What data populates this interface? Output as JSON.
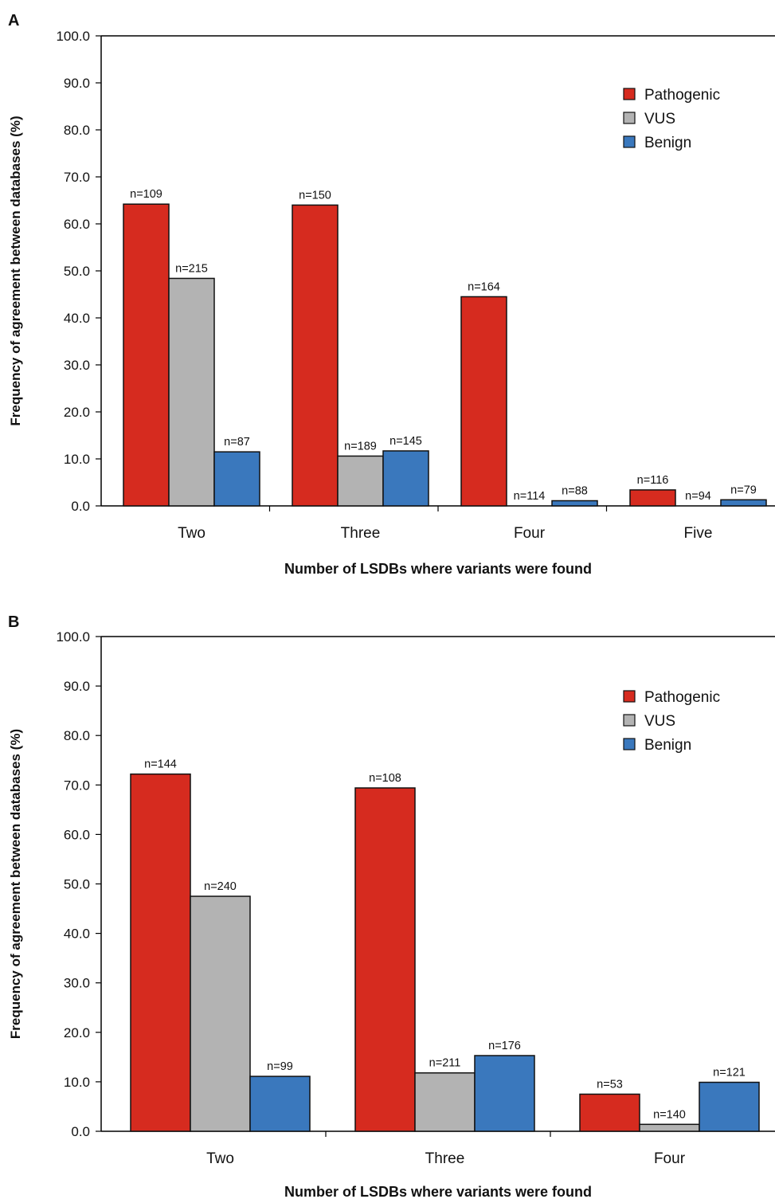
{
  "figure": {
    "panels": [
      {
        "letter": "A",
        "chart_index": 0
      },
      {
        "letter": "B",
        "chart_index": 1
      }
    ]
  },
  "chart_data": [
    {
      "type": "bar",
      "panel": "A",
      "categories": [
        "Two",
        "Three",
        "Four",
        "Five"
      ],
      "series": [
        {
          "name": "Pathogenic",
          "color": "#d62b1f",
          "values": [
            64.2,
            64.0,
            44.5,
            3.4
          ],
          "labels": [
            "n=109",
            "n=150",
            "n=164",
            "n=116"
          ]
        },
        {
          "name": "VUS",
          "color": "#b3b3b3",
          "values": [
            48.4,
            10.6,
            0.0,
            0.0
          ],
          "labels": [
            "n=215",
            "n=189",
            "n=114",
            "n=94"
          ]
        },
        {
          "name": "Benign",
          "color": "#3a78bd",
          "values": [
            11.5,
            11.7,
            1.1,
            1.3
          ],
          "labels": [
            "n=87",
            "n=145",
            "n=88",
            "n=79"
          ]
        }
      ],
      "xlabel": "Number of LSDBs where variants were found",
      "ylabel": "Frequency of agreement between databases (%)",
      "ylim": [
        0,
        100
      ],
      "yticks": [
        "0.0",
        "10.0",
        "20.0",
        "30.0",
        "40.0",
        "50.0",
        "60.0",
        "70.0",
        "80.0",
        "90.0",
        "100.0"
      ],
      "grid": false,
      "legend_position": "top-right"
    },
    {
      "type": "bar",
      "panel": "B",
      "categories": [
        "Two",
        "Three",
        "Four"
      ],
      "series": [
        {
          "name": "Pathogenic",
          "color": "#d62b1f",
          "values": [
            72.2,
            69.4,
            7.5
          ],
          "labels": [
            "n=144",
            "n=108",
            "n=53"
          ]
        },
        {
          "name": "VUS",
          "color": "#b3b3b3",
          "values": [
            47.5,
            11.8,
            1.4
          ],
          "labels": [
            "n=240",
            "n=211",
            "n=140"
          ]
        },
        {
          "name": "Benign",
          "color": "#3a78bd",
          "values": [
            11.1,
            15.3,
            9.9
          ],
          "labels": [
            "n=99",
            "n=176",
            "n=121"
          ]
        }
      ],
      "xlabel": "Number of LSDBs where variants were found",
      "ylabel": "Frequency of agreement between databases (%)",
      "ylim": [
        0,
        100
      ],
      "yticks": [
        "0.0",
        "10.0",
        "20.0",
        "30.0",
        "40.0",
        "50.0",
        "60.0",
        "70.0",
        "80.0",
        "90.0",
        "100.0"
      ],
      "grid": false,
      "legend_position": "top-right"
    }
  ]
}
